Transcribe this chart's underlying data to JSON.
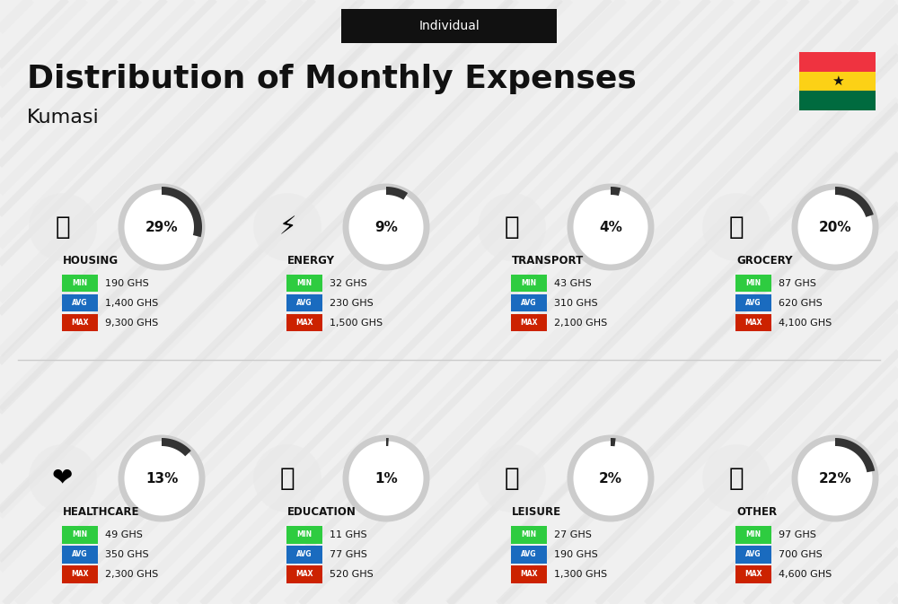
{
  "title": "Distribution of Monthly Expenses",
  "subtitle": "Individual",
  "city": "Kumasi",
  "bg_color": "#f0f0f0",
  "categories": [
    {
      "name": "HOUSING",
      "pct": 29,
      "min": "190 GHS",
      "avg": "1,400 GHS",
      "max": "9,300 GHS",
      "row": 0,
      "col": 0
    },
    {
      "name": "ENERGY",
      "pct": 9,
      "min": "32 GHS",
      "avg": "230 GHS",
      "max": "1,500 GHS",
      "row": 0,
      "col": 1
    },
    {
      "name": "TRANSPORT",
      "pct": 4,
      "min": "43 GHS",
      "avg": "310 GHS",
      "max": "2,100 GHS",
      "row": 0,
      "col": 2
    },
    {
      "name": "GROCERY",
      "pct": 20,
      "min": "87 GHS",
      "avg": "620 GHS",
      "max": "4,100 GHS",
      "row": 0,
      "col": 3
    },
    {
      "name": "HEALTHCARE",
      "pct": 13,
      "min": "49 GHS",
      "avg": "350 GHS",
      "max": "2,300 GHS",
      "row": 1,
      "col": 0
    },
    {
      "name": "EDUCATION",
      "pct": 1,
      "min": "11 GHS",
      "avg": "77 GHS",
      "max": "520 GHS",
      "row": 1,
      "col": 1
    },
    {
      "name": "LEISURE",
      "pct": 2,
      "min": "27 GHS",
      "avg": "190 GHS",
      "max": "1,300 GHS",
      "row": 1,
      "col": 2
    },
    {
      "name": "OTHER",
      "pct": 22,
      "min": "97 GHS",
      "avg": "700 GHS",
      "max": "4,600 GHS",
      "row": 1,
      "col": 3
    }
  ],
  "min_color": "#2ecc40",
  "avg_color": "#1a6bbf",
  "max_color": "#cc2200",
  "label_color": "#ffffff",
  "arc_color": "#333333",
  "arc_bg_color": "#cccccc",
  "stripe_color": "#e0e0e0",
  "flag_colors": [
    "#ef3340",
    "#fcd116",
    "#006b3f"
  ],
  "ghana_star_color": "#000000"
}
